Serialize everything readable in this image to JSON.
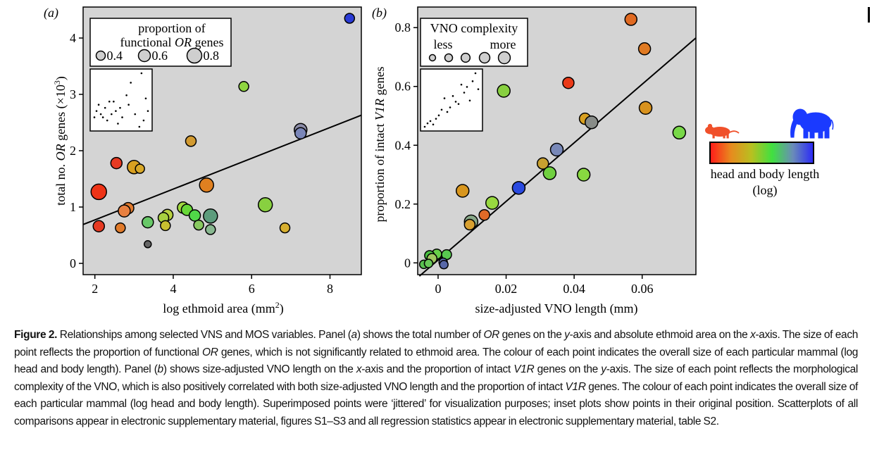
{
  "chart_data": [
    {
      "panel_label": "(a)",
      "type": "scatter",
      "xlabel": "log ethmoid area (mm",
      "xlabel_sup": "2",
      "xlabel_end": ")",
      "ylabel_pre": "total no. ",
      "ylabel_italic": "OR",
      "ylabel_post": " genes (×10",
      "ylabel_sup": "3",
      "ylabel_end": ")",
      "xlim": [
        1.7,
        8.8
      ],
      "ylim": [
        -0.2,
        4.55
      ],
      "xticks": [
        2,
        4,
        6,
        8
      ],
      "yticks": [
        0,
        1,
        2,
        3,
        4
      ],
      "grid": false,
      "regression": {
        "x": [
          1.7,
          8.8
        ],
        "y": [
          0.69,
          2.63
        ]
      },
      "legend": {
        "placement": "top-left",
        "title_line1": "proportion of",
        "title_line2_pre": "functional ",
        "title_line2_italic": "OR",
        "title_line2_post": " genes",
        "entries": [
          {
            "label": "0.4",
            "size": 0.4
          },
          {
            "label": "0.6",
            "size": 0.6
          },
          {
            "label": "0.8",
            "size": 0.8
          }
        ]
      },
      "inset": {
        "placement": "top-left",
        "points": [
          [
            2.1,
            2.6
          ],
          [
            2.2,
            2.8
          ],
          [
            2.3,
            2.5
          ],
          [
            2.4,
            2.4
          ],
          [
            2.5,
            2.7
          ],
          [
            2.6,
            2.3
          ],
          [
            2.7,
            2.9
          ],
          [
            2.8,
            2.5
          ],
          [
            3.0,
            2.6
          ],
          [
            3.1,
            2.2
          ],
          [
            3.2,
            2.7
          ],
          [
            3.3,
            2.4
          ],
          [
            3.5,
            3.1
          ],
          [
            3.7,
            3.5
          ],
          [
            3.9,
            2.5
          ],
          [
            4.1,
            2.1
          ],
          [
            4.2,
            3.8
          ],
          [
            4.4,
            3.0
          ],
          [
            4.5,
            2.6
          ],
          [
            2.0,
            2.4
          ],
          [
            3.6,
            2.8
          ],
          [
            2.9,
            2.9
          ],
          [
            4.3,
            2.3
          ]
        ]
      },
      "points": [
        {
          "x": 8.5,
          "y": 4.35,
          "size": 0.45,
          "color": "#2a3bd6"
        },
        {
          "x": 5.8,
          "y": 3.14,
          "size": 0.45,
          "color": "#8fd640"
        },
        {
          "x": 7.25,
          "y": 2.37,
          "size": 0.65,
          "color": "#8c8ca8"
        },
        {
          "x": 7.25,
          "y": 2.31,
          "size": 0.55,
          "color": "#7a86b8"
        },
        {
          "x": 4.45,
          "y": 2.17,
          "size": 0.5,
          "color": "#d29a30"
        },
        {
          "x": 2.55,
          "y": 1.78,
          "size": 0.55,
          "color": "#e63a22"
        },
        {
          "x": 3.0,
          "y": 1.71,
          "size": 0.7,
          "color": "#d9a020"
        },
        {
          "x": 3.15,
          "y": 1.68,
          "size": 0.4,
          "color": "#d9a828"
        },
        {
          "x": 2.1,
          "y": 1.27,
          "size": 0.85,
          "color": "#ee3316"
        },
        {
          "x": 4.85,
          "y": 1.39,
          "size": 0.75,
          "color": "#e08020"
        },
        {
          "x": 6.35,
          "y": 1.04,
          "size": 0.75,
          "color": "#88d040"
        },
        {
          "x": 2.85,
          "y": 0.98,
          "size": 0.55,
          "color": "#e07a2e"
        },
        {
          "x": 2.75,
          "y": 0.93,
          "size": 0.6,
          "color": "#e88040"
        },
        {
          "x": 3.85,
          "y": 0.86,
          "size": 0.55,
          "color": "#b8d040"
        },
        {
          "x": 3.75,
          "y": 0.81,
          "size": 0.5,
          "color": "#a8d040"
        },
        {
          "x": 4.25,
          "y": 0.99,
          "size": 0.55,
          "color": "#a0d840"
        },
        {
          "x": 4.35,
          "y": 0.95,
          "size": 0.55,
          "color": "#68d838"
        },
        {
          "x": 4.55,
          "y": 0.85,
          "size": 0.55,
          "color": "#50d848"
        },
        {
          "x": 4.95,
          "y": 0.84,
          "size": 0.75,
          "color": "#5c9c7c"
        },
        {
          "x": 3.35,
          "y": 0.73,
          "size": 0.55,
          "color": "#68c868"
        },
        {
          "x": 2.1,
          "y": 0.66,
          "size": 0.55,
          "color": "#e63a22"
        },
        {
          "x": 2.65,
          "y": 0.63,
          "size": 0.45,
          "color": "#e07a2a"
        },
        {
          "x": 3.8,
          "y": 0.67,
          "size": 0.45,
          "color": "#c8c030"
        },
        {
          "x": 4.65,
          "y": 0.68,
          "size": 0.45,
          "color": "#88c860"
        },
        {
          "x": 4.95,
          "y": 0.6,
          "size": 0.45,
          "color": "#88b890"
        },
        {
          "x": 6.85,
          "y": 0.63,
          "size": 0.45,
          "color": "#d8b030"
        },
        {
          "x": 3.35,
          "y": 0.34,
          "size": 0.25,
          "color": "#666666"
        }
      ]
    },
    {
      "panel_label": "(b)",
      "type": "scatter",
      "xlabel": "size-adjusted VNO length (mm)",
      "ylabel_pre": "proportion of intact ",
      "ylabel_italic": "V1R",
      "ylabel_post": " genes",
      "xlim": [
        -0.006,
        0.0758
      ],
      "ylim": [
        -0.04,
        0.87
      ],
      "xticks": [
        {
          "v": 0,
          "label": "0"
        },
        {
          "v": 0.02,
          "label": "0.02"
        },
        {
          "v": 0.04,
          "label": "0.04"
        },
        {
          "v": 0.06,
          "label": "0.06"
        }
      ],
      "yticks": [
        {
          "v": 0,
          "label": "0"
        },
        {
          "v": 0.2,
          "label": "0.2"
        },
        {
          "v": 0.4,
          "label": "0.4"
        },
        {
          "v": 0.6,
          "label": "0.6"
        },
        {
          "v": 0.8,
          "label": "0.8"
        }
      ],
      "grid": false,
      "regression": {
        "x": [
          -0.0055,
          0.0758
        ],
        "y": [
          -0.045,
          0.765
        ]
      },
      "legend": {
        "placement": "top-left",
        "title": "VNO complexity",
        "left_label": "less",
        "right_label": "more",
        "sizes": [
          0.35,
          0.5,
          0.62,
          0.78,
          0.92
        ]
      },
      "inset": {
        "placement": "top-left",
        "points": [
          [
            0.0,
            0.05
          ],
          [
            0.001,
            0.08
          ],
          [
            0.002,
            0.1
          ],
          [
            0.003,
            0.07
          ],
          [
            0.004,
            0.12
          ],
          [
            0.005,
            0.15
          ],
          [
            0.006,
            0.2
          ],
          [
            0.007,
            0.3
          ],
          [
            0.008,
            0.18
          ],
          [
            0.009,
            0.22
          ],
          [
            0.01,
            0.32
          ],
          [
            0.011,
            0.27
          ],
          [
            0.012,
            0.25
          ],
          [
            0.013,
            0.42
          ],
          [
            0.014,
            0.35
          ],
          [
            0.015,
            0.4
          ],
          [
            0.016,
            0.28
          ],
          [
            0.017,
            0.45
          ],
          [
            0.018,
            0.52
          ],
          [
            0.019,
            0.38
          ]
        ]
      },
      "points": [
        {
          "x": 0.0567,
          "y": 0.828,
          "size": 0.6,
          "color": "#e06a22"
        },
        {
          "x": 0.0607,
          "y": 0.728,
          "size": 0.6,
          "color": "#e07a22"
        },
        {
          "x": 0.0383,
          "y": 0.612,
          "size": 0.55,
          "color": "#ea3a18"
        },
        {
          "x": 0.0193,
          "y": 0.585,
          "size": 0.65,
          "color": "#88d040"
        },
        {
          "x": 0.061,
          "y": 0.527,
          "size": 0.65,
          "color": "#d8921e"
        },
        {
          "x": 0.0432,
          "y": 0.49,
          "size": 0.55,
          "color": "#d8a020"
        },
        {
          "x": 0.0451,
          "y": 0.478,
          "size": 0.65,
          "color": "#888c88"
        },
        {
          "x": 0.0709,
          "y": 0.443,
          "size": 0.65,
          "color": "#78d848"
        },
        {
          "x": 0.0349,
          "y": 0.385,
          "size": 0.65,
          "color": "#7888b8"
        },
        {
          "x": 0.0308,
          "y": 0.338,
          "size": 0.55,
          "color": "#c8a030"
        },
        {
          "x": 0.0328,
          "y": 0.305,
          "size": 0.65,
          "color": "#70d040"
        },
        {
          "x": 0.0428,
          "y": 0.3,
          "size": 0.65,
          "color": "#88d840"
        },
        {
          "x": 0.0237,
          "y": 0.255,
          "size": 0.65,
          "color": "#2a4ae0"
        },
        {
          "x": 0.0072,
          "y": 0.245,
          "size": 0.65,
          "color": "#d8961e"
        },
        {
          "x": 0.0159,
          "y": 0.204,
          "size": 0.65,
          "color": "#98d840"
        },
        {
          "x": 0.0136,
          "y": 0.163,
          "size": 0.5,
          "color": "#e06a28"
        },
        {
          "x": 0.0097,
          "y": 0.14,
          "size": 0.7,
          "color": "#88a888"
        },
        {
          "x": 0.0093,
          "y": 0.13,
          "size": 0.5,
          "color": "#d8a030"
        },
        {
          "x": -0.0004,
          "y": 0.03,
          "size": 0.45,
          "color": "#68d048"
        },
        {
          "x": -0.0025,
          "y": 0.025,
          "size": 0.45,
          "color": "#48c040"
        },
        {
          "x": -0.0018,
          "y": 0.015,
          "size": 0.45,
          "color": "#a0c860"
        },
        {
          "x": 0.0025,
          "y": 0.028,
          "size": 0.45,
          "color": "#58c850"
        },
        {
          "x": -0.0042,
          "y": -0.005,
          "size": 0.35,
          "color": "#58c050"
        },
        {
          "x": -0.0028,
          "y": -0.002,
          "size": 0.35,
          "color": "#68c858"
        },
        {
          "x": 0.0015,
          "y": 0.002,
          "size": 0.35,
          "color": "#6878b8"
        },
        {
          "x": 0.0017,
          "y": -0.006,
          "size": 0.35,
          "color": "#5868a8"
        }
      ]
    }
  ],
  "colorbar": {
    "label_line1": "head and body length",
    "label_line2": "(log)",
    "gradient": [
      "#ff1a1a",
      "#e88a1e",
      "#b8c020",
      "#40e040",
      "#6a8cb8",
      "#2a28f8"
    ],
    "small_animal_icon": "rodent-icon",
    "small_animal_color": "#f0502a",
    "large_animal_icon": "elephant-icon",
    "large_animal_color": "#1a3aff"
  },
  "caption": {
    "label": "Figure 2.",
    "segments": [
      {
        "t": " Relationships among selected VNS and MOS variables. Panel ("
      },
      {
        "t": "a",
        "i": true
      },
      {
        "t": ") shows the total number of "
      },
      {
        "t": "OR",
        "i": true
      },
      {
        "t": " genes on the "
      },
      {
        "t": "y",
        "i": true
      },
      {
        "t": "-axis and absolute ethmoid area on the "
      },
      {
        "t": "x",
        "i": true
      },
      {
        "t": "-axis. The size of each point reflects the proportion of functional "
      },
      {
        "t": "OR",
        "i": true
      },
      {
        "t": " genes, which is not significantly related to ethmoid area. The colour of each point indicates the overall size of each particular mammal (log head and body length). Panel ("
      },
      {
        "t": "b",
        "i": true
      },
      {
        "t": ") shows size-adjusted VNO length on the "
      },
      {
        "t": "x",
        "i": true
      },
      {
        "t": "-axis and the proportion of intact "
      },
      {
        "t": "V1R",
        "i": true
      },
      {
        "t": " genes on the "
      },
      {
        "t": "y",
        "i": true
      },
      {
        "t": "-axis. The size of each point reflects the morphological complexity of the VNO, which is also positively correlated with both size-adjusted VNO length and the proportion of intact "
      },
      {
        "t": "V1R",
        "i": true
      },
      {
        "t": " genes. The colour of each point indicates the overall size of each particular mammal (log head and body length). Superimposed points were ‘jittered’ for visualization purposes; inset plots show points in their original position. Scatterplots of all comparisons appear in electronic supplementary material, figures S1–S3 and all regression statistics appear in electronic supplementary material, table S2."
      }
    ]
  }
}
